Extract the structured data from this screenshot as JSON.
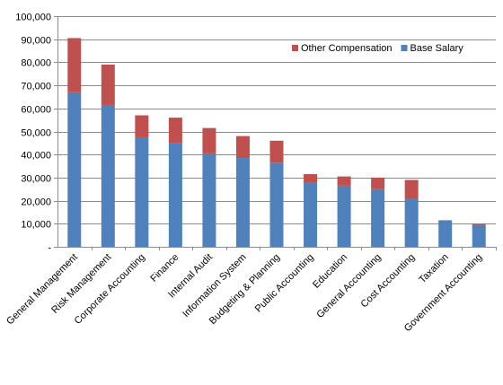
{
  "chart_data": {
    "type": "bar",
    "stacked": true,
    "categories": [
      "General Management",
      "Risk Management",
      "Corporate Accounting",
      "Finance",
      "Internal Audit",
      "Information System",
      "Budgeting & Planning",
      "Public Accounting",
      "Education",
      "General Accounting",
      "Cost Accounting",
      "Taxation",
      "Government Accounting"
    ],
    "series": [
      {
        "name": "Base Salary",
        "color": "#4F81BD",
        "values": [
          67000,
          61500,
          47500,
          45000,
          40500,
          38500,
          36500,
          28000,
          26500,
          25000,
          21000,
          11500,
          9500
        ]
      },
      {
        "name": "Other Compensation",
        "color": "#C0504D",
        "values": [
          23500,
          17500,
          9500,
          11000,
          11000,
          9500,
          9500,
          3500,
          4000,
          5000,
          8000,
          0,
          500
        ]
      }
    ],
    "ylim": [
      0,
      100000
    ],
    "yticks": [
      0,
      10000,
      20000,
      30000,
      40000,
      50000,
      60000,
      70000,
      80000,
      90000,
      100000
    ],
    "ytick_labels": [
      "-",
      "10,000",
      "20,000",
      "30,000",
      "40,000",
      "50,000",
      "60,000",
      "70,000",
      "80,000",
      "90,000",
      "100,000"
    ],
    "grid": true,
    "legend": {
      "position": "top-right",
      "entries": [
        "Other Compensation",
        "Base Salary"
      ]
    },
    "title": "",
    "xlabel": "",
    "ylabel": ""
  }
}
